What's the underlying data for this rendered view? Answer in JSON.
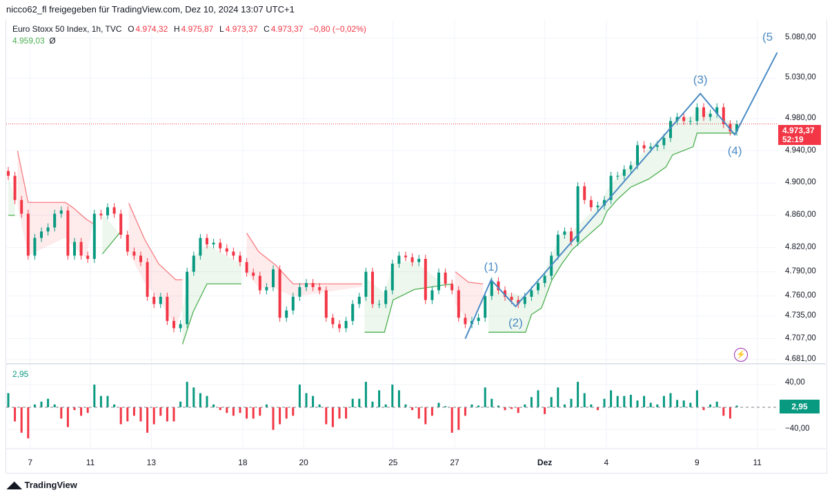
{
  "header": {
    "shared_by": "nicco62_fl freigegeben für TradingView.com, Dez 10, 2024 13:07 UTC+1"
  },
  "legend": {
    "symbol": "Euro Stoxx 50 Index, 1h, TVC",
    "o_label": "O",
    "o": "4.974,32",
    "h_label": "H",
    "h": "4.975,87",
    "l_label": "L",
    "l": "4.973,37",
    "c_label": "C",
    "c": "4.973,37",
    "change": "−0,80 (−0,02%)",
    "indicator_value": "4.959,03",
    "indicator_symbol": "Ø"
  },
  "last_price": {
    "value": "4.973,37",
    "countdown": "52:19",
    "color": "#f23645"
  },
  "oscillator": {
    "value": "2,95",
    "color": "#089981",
    "ticks": [
      "40,00",
      "−40,00"
    ]
  },
  "footer": {
    "logo": "TradingView"
  },
  "icons": {
    "flash": "lightning-icon",
    "logo": "tradingview-logo-icon"
  },
  "chart_data": {
    "type": "candlestick",
    "price_scale": {
      "ticks": [
        "5.080,00",
        "5.030,00",
        "4.980,00",
        "4.940,00",
        "4.900,00",
        "4.860,00",
        "4.820,00",
        "4.790,00",
        "4.760,00",
        "4.735,00",
        "4.707,00",
        "4.681,00"
      ],
      "range": [
        4681,
        5080
      ]
    },
    "x_ticks": [
      {
        "label": "7",
        "index": 3.3
      },
      {
        "label": "11",
        "index": 12.4
      },
      {
        "label": "13",
        "index": 21.6
      },
      {
        "label": "18",
        "index": 35.4
      },
      {
        "label": "20",
        "index": 44.6
      },
      {
        "label": "25",
        "index": 58.1
      },
      {
        "label": "27",
        "index": 67.4
      },
      {
        "label": "Dez",
        "index": 81
      },
      {
        "label": "4",
        "index": 90.3
      },
      {
        "label": "9",
        "index": 104
      },
      {
        "label": "11",
        "index": 113.1
      }
    ],
    "closes": [
      4909,
      4879,
      4862,
      4810,
      4832,
      4840,
      4845,
      4862,
      4866,
      4810,
      4827,
      4810,
      4806,
      4862,
      4860,
      4870,
      4862,
      4836,
      4815,
      4810,
      4802,
      4759,
      4750,
      4759,
      4729,
      4720,
      4725,
      4790,
      4810,
      4832,
      4824,
      4826,
      4819,
      4815,
      4810,
      4802,
      4789,
      4785,
      4767,
      4771,
      4793,
      4733,
      4742,
      4759,
      4771,
      4776,
      4771,
      4767,
      4733,
      4725,
      4720,
      4729,
      4750,
      4759,
      4790,
      4750,
      4750,
      4767,
      4800,
      4810,
      4808,
      4802,
      4806,
      4755,
      4767,
      4789,
      4775,
      4767,
      4733,
      4725,
      4729,
      4733,
      4760,
      4778,
      4767,
      4759,
      4755,
      4750,
      4759,
      4767,
      4776,
      4785,
      4810,
      4836,
      4840,
      4827,
      4896,
      4879,
      4870,
      4872,
      4879,
      4909,
      4909,
      4917,
      4922,
      4947,
      4943,
      4945,
      4947,
      4956,
      4977,
      4982,
      4977,
      4977,
      4994,
      4982,
      4986,
      4994,
      4973,
      4964,
      4973
    ],
    "supertrend": [
      {
        "dir": "up",
        "points": [
          [
            0,
            4860
          ],
          [
            1,
            4860
          ]
        ]
      },
      {
        "dir": "down",
        "points": [
          [
            1.4,
            4940
          ],
          [
            3,
            4876
          ],
          [
            8.6,
            4876
          ],
          [
            9.7,
            4870
          ],
          [
            11.8,
            4855
          ],
          [
            12.8,
            4850
          ]
        ]
      },
      {
        "dir": "up",
        "points": [
          [
            14.2,
            4812
          ],
          [
            17,
            4840
          ]
        ]
      },
      {
        "dir": "down",
        "points": [
          [
            18.2,
            4875
          ],
          [
            20.6,
            4830
          ],
          [
            22.7,
            4800
          ],
          [
            25.3,
            4780
          ],
          [
            26.3,
            4780
          ]
        ]
      },
      {
        "dir": "up",
        "points": [
          [
            26.3,
            4700
          ],
          [
            27.9,
            4740
          ],
          [
            30,
            4775
          ],
          [
            35.2,
            4775
          ]
        ]
      },
      {
        "dir": "down",
        "points": [
          [
            36,
            4838
          ],
          [
            37.8,
            4815
          ],
          [
            40.4,
            4798
          ],
          [
            43,
            4775
          ],
          [
            53.4,
            4775
          ]
        ]
      },
      {
        "dir": "up",
        "points": [
          [
            53.8,
            4715
          ],
          [
            56.8,
            4715
          ],
          [
            58.1,
            4755
          ],
          [
            61.3,
            4768
          ],
          [
            67,
            4775
          ]
        ]
      },
      {
        "dir": "down",
        "points": [
          [
            67.5,
            4790
          ],
          [
            69.5,
            4777
          ],
          [
            71.7,
            4775
          ]
        ]
      },
      {
        "dir": "up",
        "points": [
          [
            72.5,
            4715
          ],
          [
            78.1,
            4715
          ],
          [
            79,
            4737
          ],
          [
            80.5,
            4745
          ],
          [
            82.1,
            4780
          ],
          [
            83.6,
            4800
          ],
          [
            85.2,
            4818
          ],
          [
            89.6,
            4850
          ],
          [
            90.4,
            4865
          ],
          [
            92,
            4880
          ],
          [
            94,
            4895
          ],
          [
            96.7,
            4905
          ],
          [
            99.3,
            4920
          ],
          [
            100.3,
            4935
          ],
          [
            103.4,
            4945
          ],
          [
            104,
            4962
          ],
          [
            110,
            4962
          ]
        ]
      }
    ],
    "elliott_wave": {
      "points": [
        [
          69,
          4707
        ],
        [
          72.9,
          4780
        ],
        [
          76.6,
          4747
        ],
        [
          104.5,
          5011
        ],
        [
          109.7,
          4960
        ],
        [
          116.1,
          5062
        ]
      ],
      "labels": [
        "(1)",
        "(2)",
        "(3)",
        "(4)",
        "(5"
      ],
      "color": "#4a8ac4"
    },
    "histogram": [
      25,
      -25,
      -45,
      -55,
      5,
      10,
      15,
      5,
      -20,
      -35,
      -5,
      -15,
      -10,
      40,
      20,
      20,
      5,
      -30,
      -25,
      -15,
      -25,
      -45,
      -30,
      -15,
      -25,
      -25,
      10,
      45,
      35,
      25,
      20,
      5,
      -5,
      -10,
      -15,
      -10,
      -20,
      -20,
      -15,
      5,
      -40,
      -30,
      -20,
      -15,
      40,
      25,
      20,
      5,
      -30,
      -35,
      -20,
      -20,
      15,
      15,
      45,
      10,
      30,
      5,
      40,
      30,
      5,
      -5,
      -20,
      -30,
      -15,
      8,
      2,
      -45,
      -40,
      -15,
      5,
      3,
      35,
      15,
      3,
      -5,
      -3,
      -10,
      5,
      18,
      30,
      -12,
      18,
      35,
      5,
      15,
      45,
      25,
      5,
      -5,
      15,
      30,
      20,
      20,
      22,
      12,
      20,
      8,
      5,
      20,
      25,
      13,
      12,
      8,
      30,
      -5,
      5,
      10,
      -15,
      -20,
      3
    ],
    "colors": {
      "up": "#089981",
      "down": "#f23645",
      "trend_up": "#4caf50",
      "trend_down": "#f77c80"
    }
  }
}
